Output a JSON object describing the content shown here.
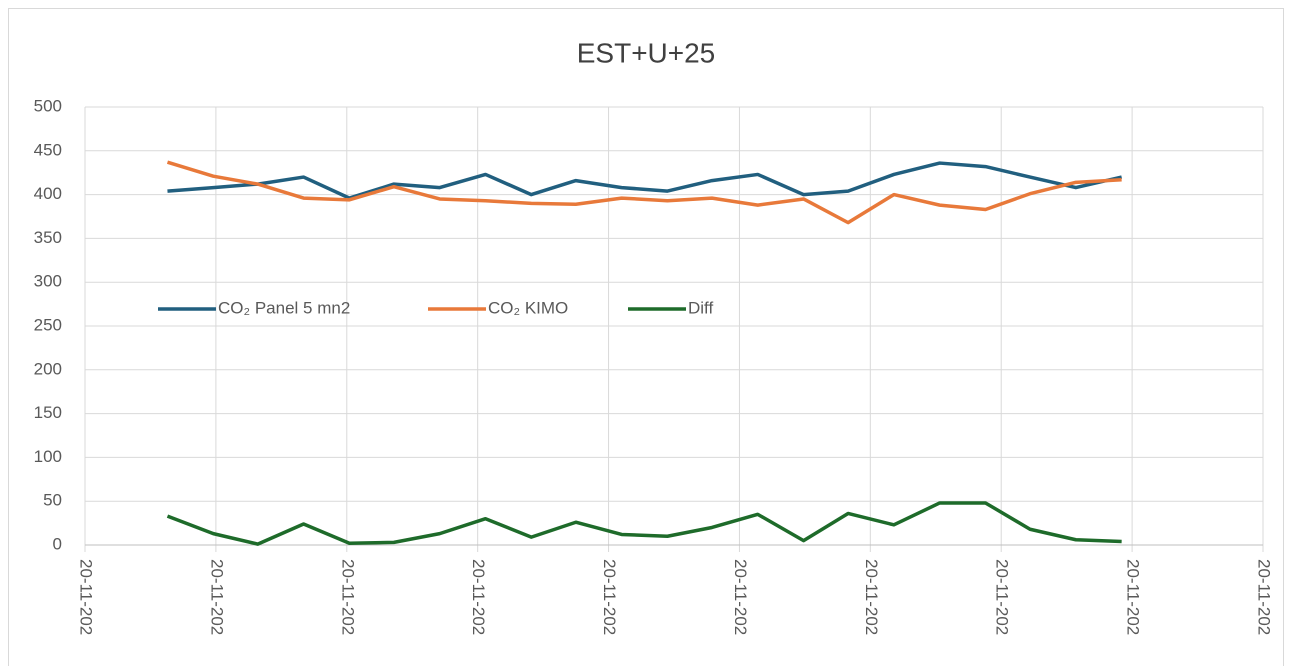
{
  "chart_data": {
    "type": "line",
    "title": "EST+U+25",
    "x": [
      0.63,
      0.98,
      1.32,
      1.67,
      2.02,
      2.36,
      2.71,
      3.06,
      3.41,
      3.75,
      4.1,
      4.45,
      4.79,
      5.14,
      5.49,
      5.83,
      6.18,
      6.53,
      6.88,
      7.22,
      7.57,
      7.92
    ],
    "series": [
      {
        "name": "CO₂ Panel 5  mn2",
        "color": "#215f7f",
        "values": [
          404,
          408,
          412,
          420,
          396,
          412,
          408,
          423,
          400,
          416,
          408,
          404,
          416,
          423,
          400,
          404,
          423,
          436,
          432,
          420,
          408,
          420
        ]
      },
      {
        "name": "CO₂ KIMO",
        "color": "#e8793a",
        "values": [
          437,
          421,
          412,
          396,
          394,
          409,
          395,
          393,
          390,
          389,
          396,
          393,
          396,
          388,
          395,
          368,
          400,
          388,
          383,
          401,
          414,
          417
        ]
      },
      {
        "name": "Diff",
        "color": "#1e6b2a",
        "values": [
          33,
          13,
          1,
          24,
          2,
          3,
          13,
          30,
          9,
          26,
          12,
          10,
          20,
          35,
          5,
          36,
          23,
          48,
          48,
          18,
          6,
          4
        ]
      }
    ],
    "ylim": [
      0,
      500
    ],
    "yticks": [
      0,
      50,
      100,
      150,
      200,
      250,
      300,
      350,
      400,
      450,
      500
    ],
    "xlim": [
      0,
      9
    ],
    "xticks": [
      {
        "value": 0,
        "label": "20-11-202"
      },
      {
        "value": 1,
        "label": "20-11-202"
      },
      {
        "value": 2,
        "label": "20-11-202"
      },
      {
        "value": 3,
        "label": "20-11-202"
      },
      {
        "value": 4,
        "label": "20-11-202"
      },
      {
        "value": 5,
        "label": "20-11-202"
      },
      {
        "value": 6,
        "label": "20-11-202"
      },
      {
        "value": 7,
        "label": "20-11-202"
      },
      {
        "value": 8,
        "label": "20-11-202"
      },
      {
        "value": 9,
        "label": "20-11-202"
      }
    ],
    "grid": true,
    "legend": "inside-left"
  }
}
